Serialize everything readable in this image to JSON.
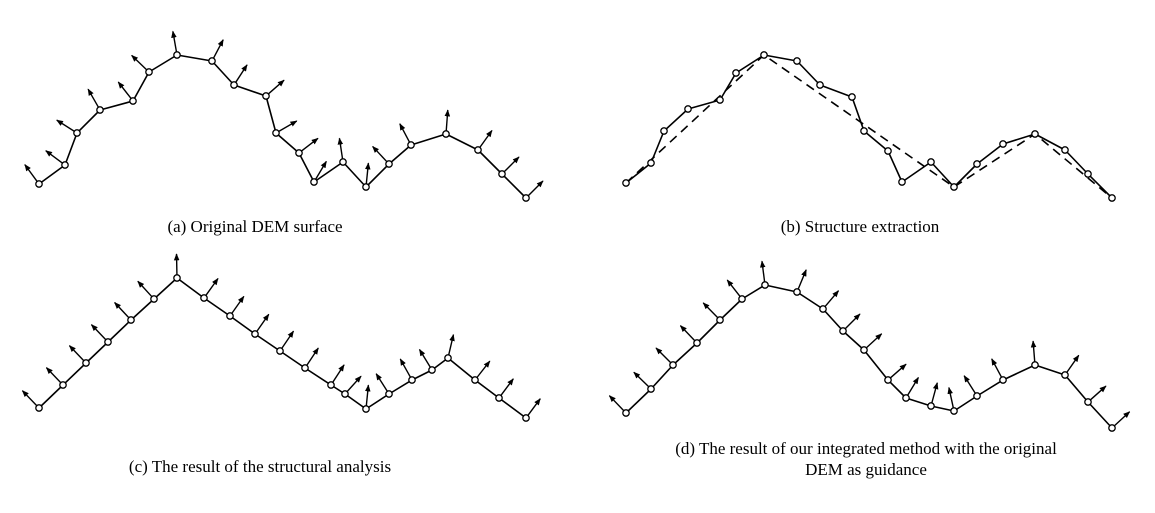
{
  "captions": {
    "a": "(a) Original DEM surface",
    "b": "(b) Structure extraction",
    "c": "(c) The result of the structural analysis",
    "d": "(d) The result of our integrated method with the original\nDEM as guidance"
  },
  "colors": {
    "stroke": "#000000",
    "point_fill": "#ffffff"
  }
}
